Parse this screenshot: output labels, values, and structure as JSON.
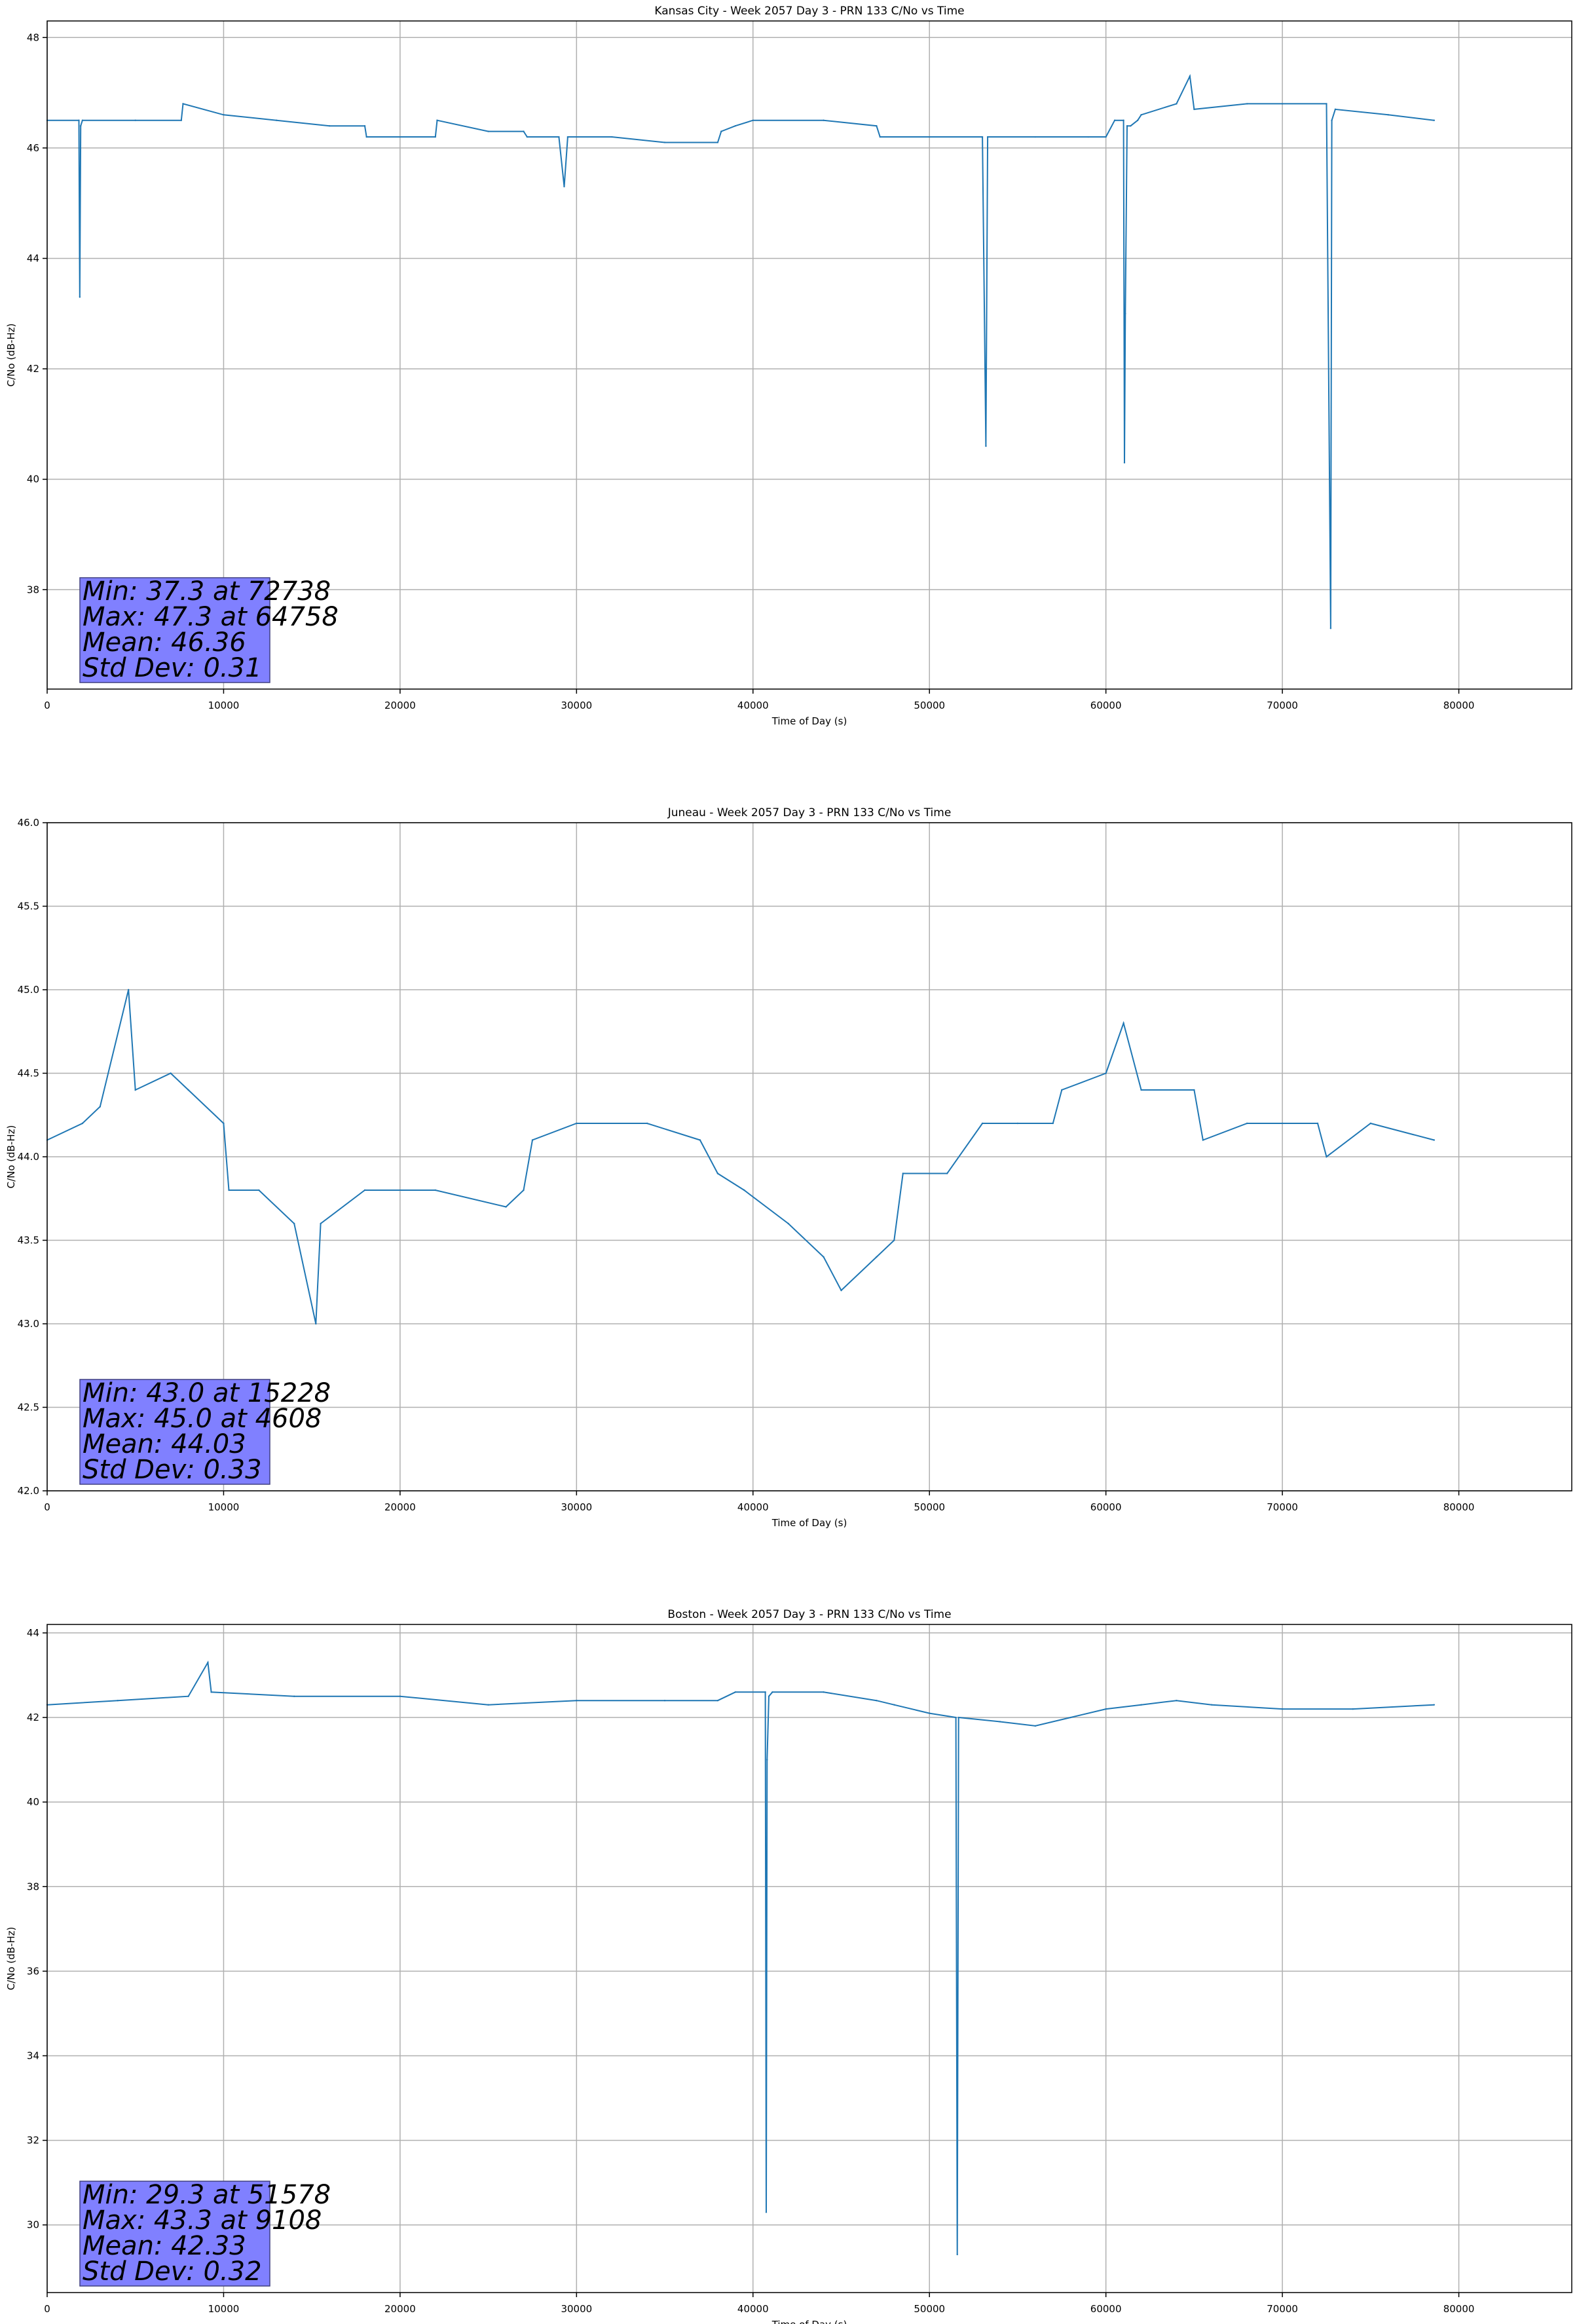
{
  "chart_data": [
    {
      "type": "line",
      "title": "Kansas City - Week 2057 Day 3 - PRN 133 C/No vs Time",
      "xlabel": "Time of Day (s)",
      "ylabel": "C/No (dB-Hz)",
      "xlim": [
        0,
        86400
      ],
      "ylim": [
        36.2,
        48.3
      ],
      "xticks": [
        0,
        10000,
        20000,
        30000,
        40000,
        50000,
        60000,
        70000,
        80000
      ],
      "xtick_labels": [
        "0",
        "10000",
        "20000",
        "30000",
        "40000",
        "50000",
        "60000",
        "70000",
        "80000"
      ],
      "yticks": [
        38,
        40,
        42,
        44,
        46,
        48
      ],
      "ytick_labels": [
        "38",
        "40",
        "42",
        "44",
        "46",
        "48"
      ],
      "grid": true,
      "line_color": "#1f77b4",
      "series": [
        {
          "x": [
            0,
            1800,
            1850,
            1900,
            2000,
            5000,
            7600,
            7700,
            10000,
            13000,
            16000,
            18000,
            18100,
            20000,
            22000,
            22100,
            25000,
            27000,
            27200,
            29000,
            29300,
            29500,
            32000,
            35000,
            38000,
            38200,
            39000,
            40000,
            44000,
            47000,
            47200,
            50000,
            53000,
            53200,
            53300,
            56000,
            59000,
            60000,
            60500,
            61000,
            61050,
            61100,
            61200,
            61400,
            61800,
            62000,
            64000,
            64758,
            65000,
            68000,
            70000,
            72500,
            72738,
            72800,
            73000,
            76000,
            78600
          ],
          "y": [
            46.5,
            46.5,
            43.3,
            46.4,
            46.5,
            46.5,
            46.5,
            46.8,
            46.6,
            46.5,
            46.4,
            46.4,
            46.2,
            46.2,
            46.2,
            46.5,
            46.3,
            46.3,
            46.2,
            46.2,
            45.3,
            46.2,
            46.2,
            46.1,
            46.1,
            46.3,
            46.4,
            46.5,
            46.5,
            46.4,
            46.2,
            46.2,
            46.2,
            40.6,
            46.2,
            46.2,
            46.2,
            46.2,
            46.5,
            46.5,
            40.3,
            43.0,
            46.4,
            46.4,
            46.5,
            46.6,
            46.8,
            47.3,
            46.7,
            46.8,
            46.8,
            46.8,
            37.3,
            46.5,
            46.7,
            46.6,
            46.5
          ]
        }
      ],
      "annotation": [
        "Min: 37.3 at 72738",
        "Max: 47.3 at 64758",
        "Mean: 46.36",
        "Std Dev: 0.31"
      ]
    },
    {
      "type": "line",
      "title": "Juneau - Week 2057 Day 3 - PRN 133 C/No vs Time",
      "xlabel": "Time of Day (s)",
      "ylabel": "C/No (dB-Hz)",
      "xlim": [
        0,
        86400
      ],
      "ylim": [
        42.0,
        46.0
      ],
      "xticks": [
        0,
        10000,
        20000,
        30000,
        40000,
        50000,
        60000,
        70000,
        80000
      ],
      "xtick_labels": [
        "0",
        "10000",
        "20000",
        "30000",
        "40000",
        "50000",
        "60000",
        "70000",
        "80000"
      ],
      "yticks": [
        42.0,
        42.5,
        43.0,
        43.5,
        44.0,
        44.5,
        45.0,
        45.5,
        46.0
      ],
      "ytick_labels": [
        "42.0",
        "42.5",
        "43.0",
        "43.5",
        "44.0",
        "44.5",
        "45.0",
        "45.5",
        "46.0"
      ],
      "grid": true,
      "line_color": "#1f77b4",
      "series": [
        {
          "x": [
            0,
            2000,
            3000,
            4608,
            5000,
            7000,
            8000,
            10000,
            10300,
            12000,
            14000,
            15228,
            15500,
            18000,
            22000,
            26000,
            27000,
            27500,
            30000,
            34000,
            37000,
            38000,
            39500,
            42000,
            44000,
            45000,
            47000,
            48000,
            48500,
            51000,
            53000,
            55000,
            57000,
            57500,
            60000,
            61000,
            62000,
            65000,
            65500,
            68000,
            70000,
            72000,
            72500,
            75000,
            78600
          ],
          "y": [
            44.1,
            44.2,
            44.3,
            45.0,
            44.4,
            44.5,
            44.4,
            44.2,
            43.8,
            43.8,
            43.6,
            43.0,
            43.6,
            43.8,
            43.8,
            43.7,
            43.8,
            44.1,
            44.2,
            44.2,
            44.1,
            43.9,
            43.8,
            43.6,
            43.4,
            43.2,
            43.4,
            43.5,
            43.9,
            43.9,
            44.2,
            44.2,
            44.2,
            44.4,
            44.5,
            44.8,
            44.4,
            44.4,
            44.1,
            44.2,
            44.2,
            44.2,
            44.0,
            44.2,
            44.1
          ]
        }
      ],
      "annotation": [
        "Min: 43.0 at 15228",
        "Max: 45.0 at 4608",
        "Mean: 44.03",
        "Std Dev: 0.33"
      ]
    },
    {
      "type": "line",
      "title": "Boston - Week 2057 Day 3 - PRN 133 C/No vs Time",
      "xlabel": "Time of Day (s)",
      "ylabel": "C/No (dB-Hz)",
      "xlim": [
        0,
        86400
      ],
      "ylim": [
        28.4,
        44.2
      ],
      "xticks": [
        0,
        10000,
        20000,
        30000,
        40000,
        50000,
        60000,
        70000,
        80000
      ],
      "xtick_labels": [
        "0",
        "10000",
        "20000",
        "30000",
        "40000",
        "50000",
        "60000",
        "70000",
        "80000"
      ],
      "yticks": [
        30,
        32,
        34,
        36,
        38,
        40,
        42,
        44
      ],
      "ytick_labels": [
        "30",
        "32",
        "34",
        "36",
        "38",
        "40",
        "42",
        "44"
      ],
      "grid": true,
      "line_color": "#1f77b4",
      "series": [
        {
          "x": [
            0,
            4000,
            8000,
            9108,
            9300,
            14000,
            20000,
            25000,
            30000,
            35000,
            38000,
            39000,
            40700,
            40750,
            40800,
            40900,
            41100,
            44000,
            47000,
            48000,
            50000,
            51500,
            51578,
            51650,
            54000,
            56000,
            58000,
            60000,
            62000,
            64000,
            66000,
            70000,
            74000,
            78600
          ],
          "y": [
            42.3,
            42.4,
            42.5,
            43.3,
            42.6,
            42.5,
            42.5,
            42.3,
            42.4,
            42.4,
            42.4,
            42.6,
            42.6,
            30.3,
            41.0,
            42.5,
            42.6,
            42.6,
            42.4,
            42.3,
            42.1,
            42.0,
            29.3,
            42.0,
            41.9,
            41.8,
            42.0,
            42.2,
            42.3,
            42.4,
            42.3,
            42.2,
            42.2,
            42.3
          ]
        }
      ],
      "annotation": [
        "Min: 29.3 at 51578",
        "Max: 43.3 at 9108",
        "Mean: 42.33",
        "Std Dev: 0.32"
      ]
    }
  ]
}
